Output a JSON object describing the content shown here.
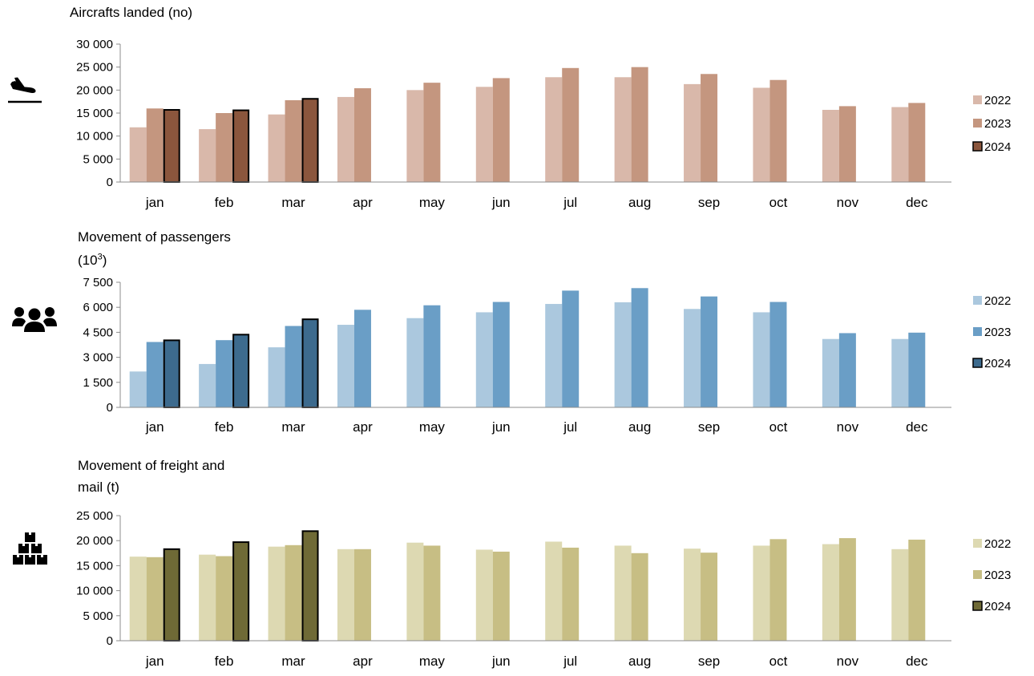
{
  "chart_data": [
    {
      "type": "bar",
      "title": "Aircrafts landed (no)",
      "icon": "airplane-landing-icon",
      "categories": [
        "jan",
        "feb",
        "mar",
        "apr",
        "may",
        "jun",
        "jul",
        "aug",
        "sep",
        "oct",
        "nov",
        "dec"
      ],
      "y_ticks": [
        "0",
        "5 000",
        "10 000",
        "15 000",
        "20 000",
        "25 000",
        "30 000"
      ],
      "ylim": [
        0,
        30000
      ],
      "grid": false,
      "legend_position": "right",
      "series": [
        {
          "name": "2022",
          "color": "#d9b8aa",
          "values": [
            11900,
            11500,
            14700,
            18500,
            20000,
            20700,
            22800,
            22800,
            21300,
            20500,
            15700,
            16300
          ]
        },
        {
          "name": "2023",
          "color": "#c4967f",
          "values": [
            16000,
            15000,
            17800,
            20400,
            21600,
            22600,
            24800,
            25000,
            23500,
            22200,
            16500,
            17200
          ]
        },
        {
          "name": "2024",
          "color": "#8b563d",
          "values": [
            15700,
            15600,
            18100,
            null,
            null,
            null,
            null,
            null,
            null,
            null,
            null,
            null
          ]
        }
      ]
    },
    {
      "type": "bar",
      "title": "Movement of passengers",
      "title_line2": "(10",
      "title_sup": "3",
      "title_line2_end": ")",
      "icon": "people-group-icon",
      "categories": [
        "jan",
        "feb",
        "mar",
        "apr",
        "may",
        "jun",
        "jul",
        "aug",
        "sep",
        "oct",
        "nov",
        "dec"
      ],
      "y_ticks": [
        "0",
        "1 500",
        "3 000",
        "4 500",
        "6 000",
        "7 500"
      ],
      "ylim": [
        0,
        7500
      ],
      "grid": false,
      "legend_position": "right",
      "series": [
        {
          "name": "2022",
          "color": "#abc8de",
          "values": [
            2150,
            2600,
            3600,
            4950,
            5350,
            5700,
            6200,
            6300,
            5900,
            5700,
            4100,
            4100
          ]
        },
        {
          "name": "2023",
          "color": "#6a9ec6",
          "values": [
            3920,
            4030,
            4880,
            5850,
            6120,
            6320,
            7000,
            7150,
            6650,
            6320,
            4450,
            4480
          ]
        },
        {
          "name": "2024",
          "color": "#3d6b8e",
          "values": [
            4020,
            4360,
            5280,
            null,
            null,
            null,
            null,
            null,
            null,
            null,
            null,
            null
          ]
        }
      ]
    },
    {
      "type": "bar",
      "title": "Movement of freight and",
      "title_line2": "mail (t)",
      "icon": "stacked-boxes-icon",
      "categories": [
        "jan",
        "feb",
        "mar",
        "apr",
        "may",
        "jun",
        "jul",
        "aug",
        "sep",
        "oct",
        "nov",
        "dec"
      ],
      "y_ticks": [
        "0",
        "5 000",
        "10 000",
        "15 000",
        "20 000",
        "25 000"
      ],
      "ylim": [
        0,
        25000
      ],
      "grid": false,
      "legend_position": "right",
      "series": [
        {
          "name": "2022",
          "color": "#ddd9b2",
          "values": [
            16800,
            17200,
            18800,
            18300,
            19600,
            18200,
            19800,
            19000,
            18400,
            19000,
            19300,
            18300
          ]
        },
        {
          "name": "2023",
          "color": "#c7be84",
          "values": [
            16700,
            16900,
            19100,
            18300,
            19000,
            17800,
            18600,
            17500,
            17600,
            20300,
            20500,
            20200
          ]
        },
        {
          "name": "2024",
          "color": "#6f6a36",
          "values": [
            18300,
            19700,
            21900,
            null,
            null,
            null,
            null,
            null,
            null,
            null,
            null,
            null
          ]
        }
      ]
    }
  ]
}
